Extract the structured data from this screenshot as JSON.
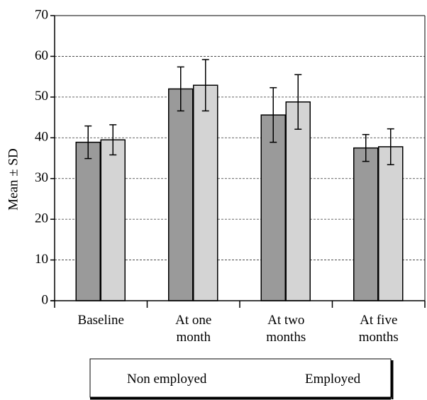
{
  "chart_data": {
    "type": "bar",
    "ylabel": "Mean ± SD",
    "xlabel": "",
    "ylim": [
      0,
      70
    ],
    "yticks": [
      0,
      10,
      20,
      30,
      40,
      50,
      60,
      70
    ],
    "grid": "horizontal dashed",
    "categories": [
      [
        "Baseline"
      ],
      [
        "At one",
        "month"
      ],
      [
        "At two",
        "months"
      ],
      [
        "At five",
        "months"
      ]
    ],
    "series": [
      {
        "name": "Non employed",
        "color": "#9a9a9a",
        "values": [
          38.9,
          52.0,
          45.6,
          37.5
        ],
        "sd": [
          4.0,
          5.4,
          6.7,
          3.3
        ]
      },
      {
        "name": "Employed",
        "color": "#d4d4d4",
        "values": [
          39.5,
          52.9,
          48.8,
          37.8
        ],
        "sd": [
          3.7,
          6.3,
          6.7,
          4.4
        ]
      }
    ],
    "legend_position": "bottom"
  }
}
